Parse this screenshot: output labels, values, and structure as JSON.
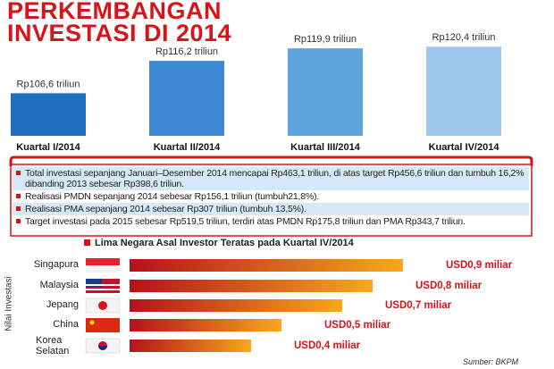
{
  "title": "PERKEMBANGAN INVESTASI DI 2014",
  "chart_data": [
    {
      "type": "bar",
      "categories": [
        "Kuartal I/2014",
        "Kuartal II/2014",
        "Kuartal III/2014",
        "Kuartal IV/2014"
      ],
      "values": [
        106.6,
        116.2,
        119.9,
        120.4
      ],
      "value_labels": [
        "Rp106,6 triliun",
        "Rp116,2 triliun",
        "Rp119,9 triliun",
        "Rp120,4 triliun"
      ],
      "colors": [
        "#1f6fc0",
        "#3d88d2",
        "#5ea2de",
        "#9ec8ee"
      ],
      "ylim": [
        94,
        121
      ]
    },
    {
      "type": "bar",
      "horizontal": true,
      "title": "Lima Negara Asal Investor Teratas pada Kuartal IV/2014",
      "y_label": "Nilai Investasi",
      "categories": [
        "Singapura",
        "Malaysia",
        "Jepang",
        "China",
        "Korea Selatan"
      ],
      "values": [
        0.9,
        0.8,
        0.7,
        0.5,
        0.4
      ],
      "value_labels": [
        "USD0,9 miliar",
        "USD0,8 miliar",
        "USD0,7 miliar",
        "USD0,5 miliar",
        "USD0,4 miliar"
      ],
      "colors": [
        "#b5121b",
        "#f7a81c"
      ],
      "xlim": [
        0,
        1
      ]
    }
  ],
  "notes": [
    "Total investasi sepanjang Januari–Desember 2014 mencapai Rp463,1 triliun, di atas target Rp456,6 triliun dan tumbuh 16,2% dibanding 2013 sebesar Rp398,6 triliun.",
    "Realisasi PMDN sepanjang 2014 sebesar Rp156,1 triliun (tumbuh21,8%).",
    "Realisasi PMA sepanjang 2014 sebesar Rp307 triliun (tumbuh 13,5%).",
    "Target investasi pada 2015 sebesar Rp519,5 triliun, terdiri atas PMDN Rp175,8 triliun dan PMA Rp343,7 triliun."
  ],
  "source": "Sumber: BKPM"
}
